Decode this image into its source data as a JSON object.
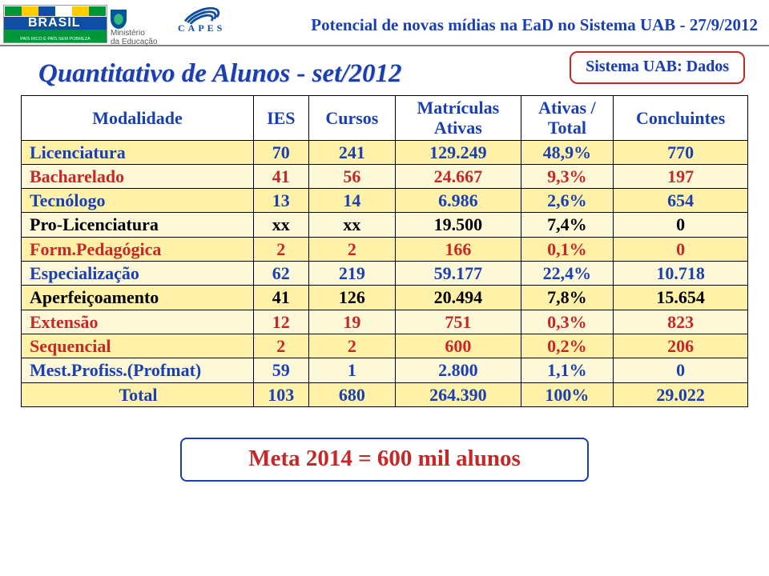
{
  "header": {
    "title": "Potencial de novas mídias na EaD no Sistema UAB",
    "date": "27/9/2012",
    "logo_brasil_alt": "BRASIL — País rico é país sem pobreza",
    "logo_mec_line1": "Ministério",
    "logo_mec_line2": "da Educação",
    "logo_capes": "CAPES"
  },
  "slide_title": "Quantitativo de Alunos - set/2012",
  "badge": "Sistema UAB: Dados",
  "colors": {
    "title_blue": "#1a3fb0",
    "accent_red": "#c62828",
    "row_yellow": "#fff2a8",
    "row_light": "#fdf8d8",
    "grid_black": "#000000",
    "hr_gray": "#808080"
  },
  "table": {
    "headers": {
      "modalidade": "Modalidade",
      "ies": "IES",
      "cursos": "Cursos",
      "matriculas_l1": "Matrículas",
      "matriculas_l2": "Ativas",
      "ativas_l1": "Ativas /",
      "ativas_l2": "Total",
      "concluintes": "Concluintes"
    },
    "rows": [
      {
        "color": "blue",
        "bg": "y",
        "modalidade": "Licenciatura",
        "ies": "70",
        "cursos": "241",
        "mat": "129.249",
        "pct": "48,9%",
        "conc": "770"
      },
      {
        "color": "red",
        "bg": "l",
        "modalidade": "Bacharelado",
        "ies": "41",
        "cursos": "56",
        "mat": "24.667",
        "pct": "9,3%",
        "conc": "197"
      },
      {
        "color": "blue",
        "bg": "y",
        "modalidade": "Tecnólogo",
        "ies": "13",
        "cursos": "14",
        "mat": "6.986",
        "pct": "2,6%",
        "conc": "654"
      },
      {
        "color": "black",
        "bg": "l",
        "modalidade": "Pro-Licenciatura",
        "ies": "xx",
        "cursos": "xx",
        "mat": "19.500",
        "pct": "7,4%",
        "conc": "0"
      },
      {
        "color": "red",
        "bg": "y",
        "modalidade": "Form.Pedagógica",
        "ies": "2",
        "cursos": "2",
        "mat": "166",
        "pct": "0,1%",
        "conc": "0"
      },
      {
        "color": "blue",
        "bg": "l",
        "modalidade": "Especialização",
        "ies": "62",
        "cursos": "219",
        "mat": "59.177",
        "pct": "22,4%",
        "conc": "10.718"
      },
      {
        "color": "black",
        "bg": "y",
        "modalidade": "Aperfeiçoamento",
        "ies": "41",
        "cursos": "126",
        "mat": "20.494",
        "pct": "7,8%",
        "conc": "15.654"
      },
      {
        "color": "red",
        "bg": "l",
        "modalidade": "Extensão",
        "ies": "12",
        "cursos": "19",
        "mat": "751",
        "pct": "0,3%",
        "conc": "823"
      },
      {
        "color": "red",
        "bg": "y",
        "modalidade": "Sequencial",
        "ies": "2",
        "cursos": "2",
        "mat": "600",
        "pct": "0,2%",
        "conc": "206"
      },
      {
        "color": "blue",
        "bg": "l",
        "modalidade": "Mest.Profiss.(Profmat)",
        "ies": "59",
        "cursos": "1",
        "mat": "2.800",
        "pct": "1,1%",
        "conc": "0"
      },
      {
        "color": "blue",
        "bg": "y",
        "modalidade": "Total",
        "ies": "103",
        "cursos": "680",
        "mat": "264.390",
        "pct": "100%",
        "conc": "29.022",
        "center": true
      }
    ]
  },
  "meta_text": "Meta 2014 = 600 mil alunos"
}
